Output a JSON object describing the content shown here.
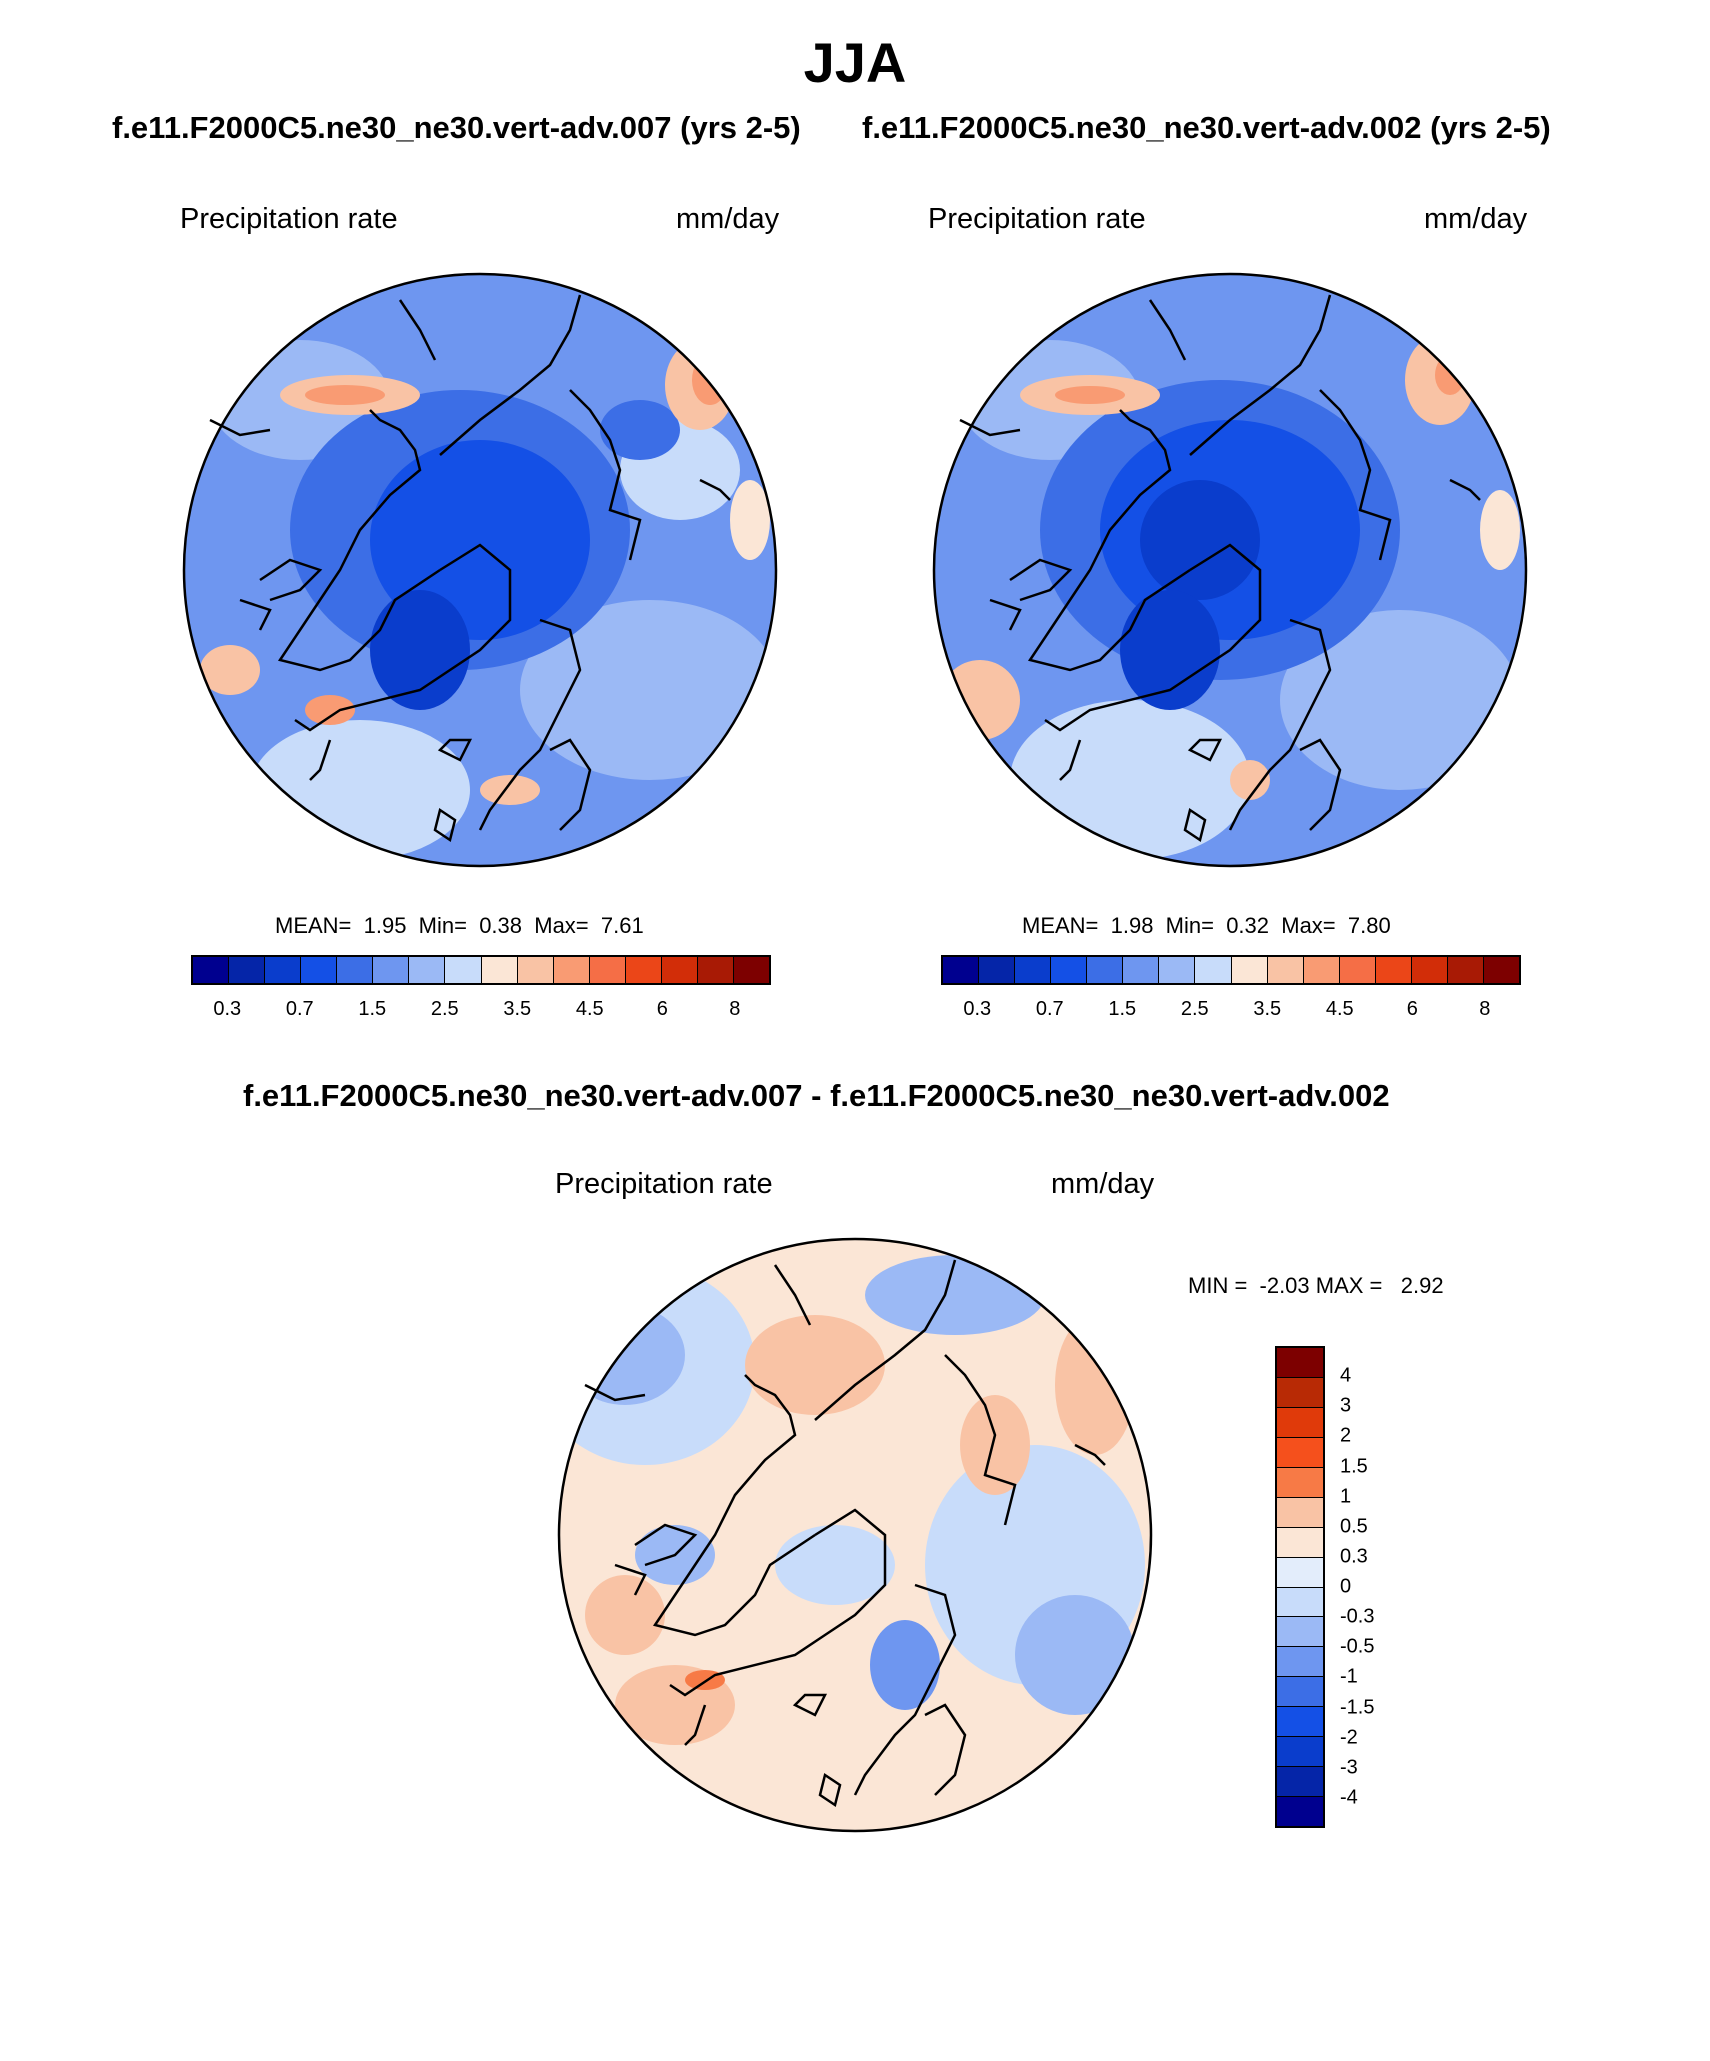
{
  "figure": {
    "title": "JJA",
    "top_subtitle_left": "f.e11.F2000C5.ne30_ne30.vert-adv.007 (yrs 2-5)",
    "top_subtitle_right": "f.e11.F2000C5.ne30_ne30.vert-adv.002 (yrs 2-5)",
    "diff_subtitle": "f.e11.F2000C5.ne30_ne30.vert-adv.007 - f.e11.F2000C5.ne30_ne30.vert-adv.002"
  },
  "panels": {
    "left": {
      "variable": "Precipitation rate",
      "units": "mm/day",
      "stats": "MEAN=  1.95  Min=  0.38  Max=  7.61"
    },
    "right": {
      "variable": "Precipitation rate",
      "units": "mm/day",
      "stats": "MEAN=  1.98  Min=  0.32  Max=  7.80"
    },
    "diff": {
      "variable": "Precipitation rate",
      "units": "mm/day",
      "stats": "MIN =  -2.03 MAX =   2.92"
    }
  },
  "colorbars": {
    "absolute": {
      "colors": [
        "#00008f",
        "#0525a8",
        "#0a3dcc",
        "#1450e6",
        "#3c6ee6",
        "#6e96f0",
        "#9bb9f5",
        "#c8dcfa",
        "#fbe6d6",
        "#f9c3a5",
        "#f99b73",
        "#f56e46",
        "#eb4618",
        "#d22d08",
        "#a81a05",
        "#7d0000"
      ],
      "tick_labels": [
        "0.3",
        "0.7",
        "1.5",
        "2.5",
        "3.5",
        "4.5",
        "6",
        "8"
      ]
    },
    "difference": {
      "colors": [
        "#7d0000",
        "#b82a05",
        "#e03a0a",
        "#f5501c",
        "#f77a46",
        "#f9c3a5",
        "#fbe6d6",
        "#e3edfb",
        "#c8dcfa",
        "#9bb9f5",
        "#6e96f0",
        "#3c6ee6",
        "#1450e6",
        "#0a3dcc",
        "#0525a8",
        "#00008f"
      ],
      "tick_labels": [
        "4",
        "3",
        "2",
        "1.5",
        "1",
        "0.5",
        "0.3",
        "0",
        "-0.3",
        "-0.5",
        "-1",
        "-1.5",
        "-2",
        "-3",
        "-4"
      ]
    }
  },
  "map_colors": {
    "abs_base": "#6e96f0",
    "abs_mid": "#3c6ee6",
    "abs_dark": "#1450e6",
    "abs_darker": "#0a3dcc",
    "abs_light": "#9bb9f5",
    "abs_pale": "#c8dcfa",
    "warm1": "#fbe6d6",
    "warm2": "#f9c3a5",
    "warm3": "#f99b73",
    "warm4": "#f56e46",
    "diff_base": "#fbe6d6",
    "diff_blue1": "#c8dcfa",
    "diff_blue2": "#9bb9f5",
    "diff_blue3": "#6e96f0",
    "diff_warm": "#f9c3a5",
    "diff_warm2": "#f77a46"
  }
}
